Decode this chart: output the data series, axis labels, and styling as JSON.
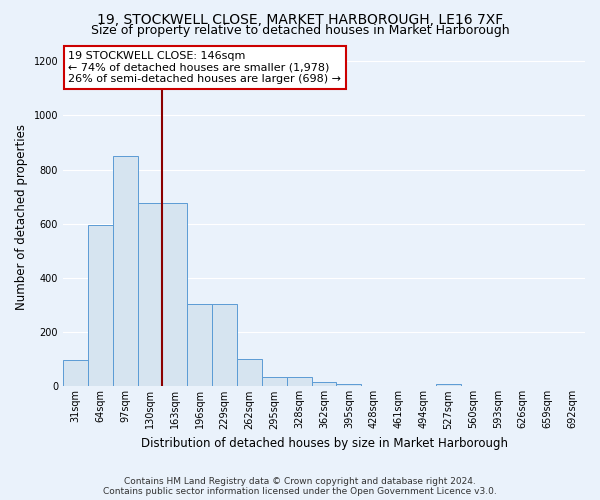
{
  "title": "19, STOCKWELL CLOSE, MARKET HARBOROUGH, LE16 7XF",
  "subtitle": "Size of property relative to detached houses in Market Harborough",
  "xlabel": "Distribution of detached houses by size in Market Harborough",
  "ylabel": "Number of detached properties",
  "categories": [
    "31sqm",
    "64sqm",
    "97sqm",
    "130sqm",
    "163sqm",
    "196sqm",
    "229sqm",
    "262sqm",
    "295sqm",
    "328sqm",
    "362sqm",
    "395sqm",
    "428sqm",
    "461sqm",
    "494sqm",
    "527sqm",
    "560sqm",
    "593sqm",
    "626sqm",
    "659sqm",
    "692sqm"
  ],
  "values": [
    97,
    597,
    848,
    678,
    678,
    305,
    305,
    100,
    33,
    33,
    15,
    10,
    0,
    0,
    0,
    10,
    0,
    0,
    0,
    0,
    0
  ],
  "bar_color": "#d6e4f0",
  "bar_edge_color": "#5b9bd5",
  "property_line_color": "#8b0000",
  "annotation_text": "19 STOCKWELL CLOSE: 146sqm\n← 74% of detached houses are smaller (1,978)\n26% of semi-detached houses are larger (698) →",
  "annotation_box_color": "#ffffff",
  "annotation_box_edge": "#cc0000",
  "ylim": [
    0,
    1250
  ],
  "yticks": [
    0,
    200,
    400,
    600,
    800,
    1000,
    1200
  ],
  "footnote": "Contains HM Land Registry data © Crown copyright and database right 2024.\nContains public sector information licensed under the Open Government Licence v3.0.",
  "background_color": "#eaf2fb",
  "grid_color": "#ffffff",
  "title_fontsize": 10,
  "subtitle_fontsize": 9,
  "label_fontsize": 8.5,
  "tick_fontsize": 7,
  "footnote_fontsize": 6.5,
  "annotation_fontsize": 8
}
